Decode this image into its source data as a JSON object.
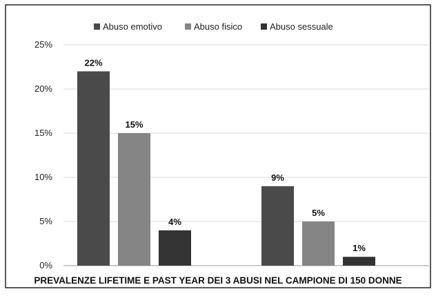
{
  "chart_data": {
    "type": "bar",
    "title": "PREVALENZE LIFETIME E PAST YEAR DEI 3 ABUSI NEL CAMPIONE DI 150 DONNE",
    "categories": [
      "",
      ""
    ],
    "series": [
      {
        "name": "Abuso emotivo",
        "values": [
          22,
          9
        ],
        "labels": [
          "22%",
          "9%"
        ],
        "color": "#4a4a4a"
      },
      {
        "name": "Abuso fisico",
        "values": [
          15,
          5
        ],
        "labels": [
          "15%",
          "5%"
        ],
        "color": "#858585"
      },
      {
        "name": "Abuso sessuale",
        "values": [
          4,
          1
        ],
        "labels": [
          "4%",
          "1%"
        ],
        "color": "#333333"
      }
    ],
    "y_ticks": [
      0,
      5,
      10,
      15,
      20,
      25
    ],
    "y_tick_labels": [
      "0%",
      "5%",
      "10%",
      "15%",
      "20%",
      "25%"
    ],
    "ylim": [
      0,
      25
    ],
    "legend_position": "top",
    "grid": true
  }
}
